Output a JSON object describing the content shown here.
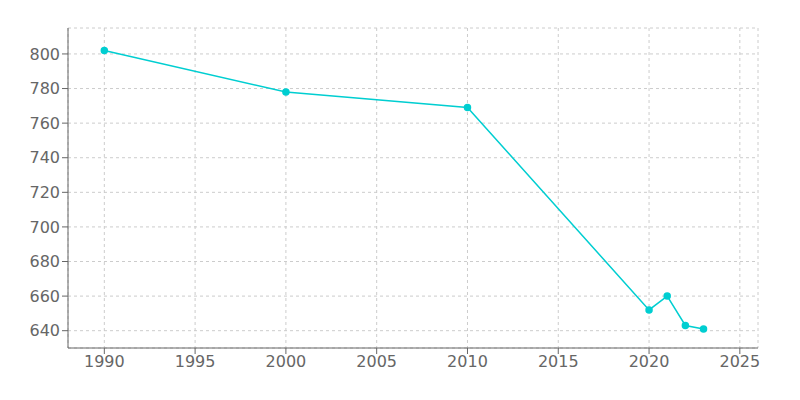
{
  "chart_data": {
    "type": "line",
    "x": [
      1990,
      2000,
      2010,
      2020,
      2021,
      2022,
      2023
    ],
    "values": [
      802,
      778,
      769,
      652,
      660,
      643,
      641
    ],
    "color": "#00CED1",
    "marker": "circle",
    "xlim": [
      1988,
      2026
    ],
    "ylim": [
      630,
      815
    ],
    "xticks": [
      1990,
      1995,
      2000,
      2005,
      2010,
      2015,
      2020,
      2025
    ],
    "yticks": [
      640,
      660,
      680,
      700,
      720,
      740,
      760,
      780,
      800
    ],
    "grid": true
  }
}
